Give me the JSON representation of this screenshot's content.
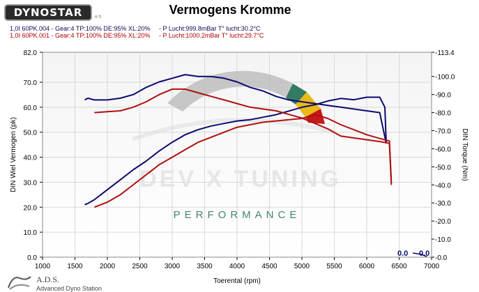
{
  "header": {
    "logo_text": "DYNOSTAR",
    "logo_sub": "® TI",
    "runs": [
      {
        "id": "1,0I 60PK.004",
        "desc": "Gear:4 TP:100% DE:95% XL:20%",
        "cond": "- P Lucht:999.8mBar T° lucht:30.2°C",
        "color": "#0a0a55"
      },
      {
        "id": "1,0I 60PK.001",
        "desc": "Gear:4 TP:100% DE:95% XL:20%",
        "cond": "- P Lucht:1000.2mBar T° lucht:29.7°C",
        "color": "#b00000"
      }
    ]
  },
  "watermark": {
    "brand": "DEV X TUNING",
    "tagline": "PERFORMANCE"
  },
  "footer": {
    "brand": "A.D.S.",
    "sub": "Advanced Dyno Station"
  },
  "chart_data": {
    "type": "line",
    "title": "Vermogens Kromme",
    "xlabel": "Toerental (rpm)",
    "ylabel": "DIN Wiel Vermogen (pk)",
    "y2label": "DIN Torque (Nm)",
    "xlim": [
      1000,
      7000
    ],
    "ylim": [
      0,
      82
    ],
    "y2lim": [
      0,
      113.4
    ],
    "x_ticks": [
      1000,
      1500,
      2000,
      2500,
      3000,
      3500,
      4000,
      4500,
      5000,
      5500,
      6000,
      6500,
      7000
    ],
    "y_ticks": [
      "0.0",
      "10.0",
      "20.0",
      "30.0",
      "40.0",
      "50.0",
      "60.0",
      "70.0",
      "82.0"
    ],
    "y_tick_values": [
      0,
      10,
      20,
      30,
      40,
      50,
      60,
      70,
      82
    ],
    "y2_ticks": [
      "0.0",
      "10.0",
      "20.0",
      "30.0",
      "40.0",
      "50.0",
      "60.0",
      "70.0",
      "80.0",
      "90.0",
      "100.0",
      "113.4"
    ],
    "y2_tick_values": [
      0,
      10,
      20,
      30,
      40,
      50,
      60,
      70,
      80,
      90,
      100,
      113.4
    ],
    "grid": true,
    "readout_values": [
      "0.0",
      "0.0"
    ],
    "series": [
      {
        "name": "1,0I 60PK.004",
        "quantity": "power",
        "axis": "left",
        "color": "#0a0a70",
        "x": [
          1650,
          1700,
          1800,
          2000,
          2200,
          2400,
          2600,
          2800,
          3000,
          3200,
          3400,
          3600,
          3800,
          4000,
          4200,
          4400,
          4600,
          4800,
          5000,
          5200,
          5400,
          5600,
          5800,
          6000,
          6200,
          6280,
          6300
        ],
        "y": [
          21,
          21.5,
          23,
          27,
          31,
          35,
          38.5,
          42.5,
          46,
          49,
          51,
          52.5,
          53.5,
          54.5,
          55,
          56,
          57,
          58.5,
          60,
          61,
          62.5,
          63.5,
          63,
          64,
          64,
          60,
          46
        ]
      },
      {
        "name": "1,0I 60PK.004",
        "quantity": "torque",
        "axis": "right",
        "color": "#0a0a70",
        "x": [
          1650,
          1700,
          1800,
          2000,
          2200,
          2400,
          2600,
          2800,
          3000,
          3200,
          3400,
          3600,
          3800,
          4000,
          4200,
          4400,
          4600,
          4800,
          5000,
          5200,
          5400,
          5600,
          5800,
          6000,
          6200,
          6300
        ],
        "y": [
          87,
          88,
          87,
          87,
          88,
          90,
          94,
          97,
          99,
          101,
          100,
          100,
          99,
          97,
          94,
          92,
          89,
          87,
          86,
          85,
          84,
          83,
          82,
          81,
          80,
          63
        ]
      },
      {
        "name": "1,0I 60PK.001",
        "quantity": "power",
        "axis": "left",
        "color": "#b01010",
        "x": [
          1800,
          2000,
          2200,
          2400,
          2600,
          2800,
          3000,
          3200,
          3400,
          3600,
          3800,
          4000,
          4200,
          4400,
          4600,
          4800,
          5000,
          5200,
          5400,
          5600,
          5800,
          6000,
          6200,
          6350,
          6380
        ],
        "y": [
          20,
          22,
          25,
          29,
          33,
          37,
          40,
          43,
          46,
          48,
          50,
          52,
          53,
          54,
          54.5,
          55,
          55.5,
          57,
          55.5,
          53,
          51,
          49,
          47.5,
          46.5,
          30
        ]
      },
      {
        "name": "1,0I 60PK.001",
        "quantity": "torque",
        "axis": "right",
        "color": "#b01010",
        "x": [
          1800,
          2000,
          2200,
          2400,
          2600,
          2800,
          3000,
          3200,
          3400,
          3600,
          3800,
          4000,
          4200,
          4400,
          4600,
          4800,
          5000,
          5200,
          5400,
          5600,
          5800,
          6000,
          6200,
          6350,
          6380
        ],
        "y": [
          80,
          80.5,
          81,
          83,
          86,
          90,
          93,
          93,
          91,
          89,
          87,
          85,
          83,
          82,
          81,
          79,
          77,
          74,
          71,
          67,
          66,
          65,
          64,
          63,
          40
        ]
      }
    ]
  }
}
